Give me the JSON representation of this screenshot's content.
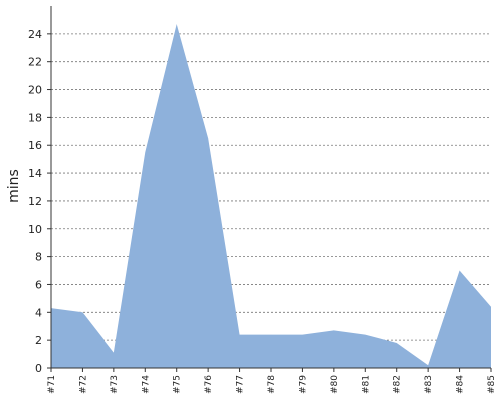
{
  "chart_data": {
    "type": "area",
    "title": "",
    "xlabel": "",
    "ylabel": "mins",
    "categories": [
      "#71",
      "#72",
      "#73",
      "#74",
      "#75",
      "#76",
      "#77",
      "#78",
      "#79",
      "#80",
      "#81",
      "#82",
      "#83",
      "#84",
      "#85"
    ],
    "series": [
      {
        "values": [
          4.3,
          4.0,
          1.1,
          15.5,
          24.7,
          16.5,
          2.4,
          2.4,
          2.4,
          2.7,
          2.4,
          1.8,
          0.2,
          7.0,
          4.4
        ]
      }
    ],
    "ylim": [
      0,
      26
    ],
    "yticks": [
      0,
      2,
      4,
      6,
      8,
      10,
      12,
      14,
      16,
      18,
      20,
      22,
      24
    ],
    "grid": true,
    "legend": "none",
    "colors": {
      "area_fill": "#8eb1db",
      "grid": "#777777",
      "axis": "#333333"
    }
  }
}
